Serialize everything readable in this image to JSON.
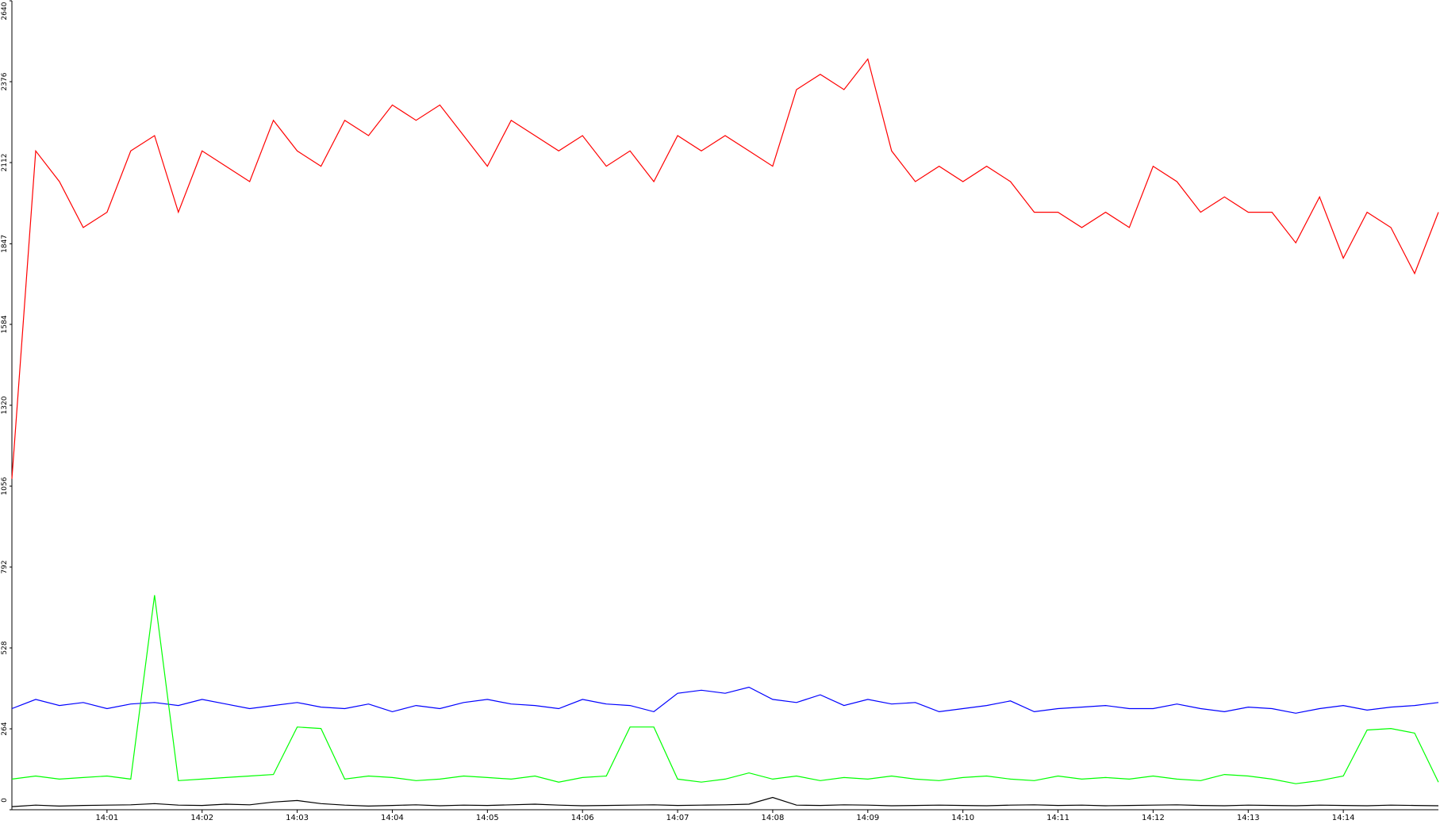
{
  "chart_data": {
    "type": "line",
    "categories": [
      null,
      null,
      null,
      null,
      "14:01",
      null,
      null,
      null,
      "14:02",
      null,
      null,
      null,
      "14:03",
      null,
      null,
      null,
      "14:04",
      null,
      null,
      null,
      "14:05",
      null,
      null,
      null,
      "14:06",
      null,
      null,
      null,
      "14:07",
      null,
      null,
      null,
      "14:08",
      null,
      null,
      null,
      "14:09",
      null,
      null,
      null,
      "14:10",
      null,
      null,
      null,
      "14:11",
      null,
      null,
      null,
      "14:12",
      null,
      null,
      null,
      "14:13",
      null,
      null,
      null,
      "14:14",
      null,
      null,
      null,
      null
    ],
    "series": [
      {
        "color": "#ff0000",
        "values": [
          1080,
          2150,
          2050,
          1900,
          1950,
          2150,
          2200,
          1950,
          2150,
          2100,
          2050,
          2250,
          2150,
          2100,
          2250,
          2200,
          2300,
          2250,
          2300,
          2200,
          2100,
          2250,
          2200,
          2150,
          2200,
          2100,
          2150,
          2050,
          2200,
          2150,
          2200,
          2150,
          2100,
          2350,
          2400,
          2350,
          2450,
          2150,
          2050,
          2100,
          2050,
          2100,
          2050,
          1950,
          1950,
          1900,
          1950,
          1900,
          2100,
          2050,
          1950,
          2000,
          1950,
          1950,
          1850,
          2000,
          1800,
          1950,
          1900,
          1750,
          1950
        ]
      },
      {
        "color": "#0000ff",
        "values": [
          330,
          360,
          340,
          350,
          330,
          345,
          350,
          340,
          360,
          345,
          330,
          340,
          350,
          335,
          330,
          345,
          320,
          340,
          330,
          350,
          360,
          345,
          340,
          330,
          360,
          345,
          340,
          320,
          380,
          390,
          380,
          400,
          360,
          350,
          375,
          340,
          360,
          345,
          350,
          320,
          330,
          340,
          355,
          320,
          330,
          335,
          340,
          330,
          330,
          345,
          330,
          320,
          335,
          330,
          315,
          330,
          340,
          325,
          335,
          340,
          350
        ]
      },
      {
        "color": "#00ff00",
        "values": [
          100,
          110,
          100,
          105,
          110,
          100,
          700,
          95,
          100,
          105,
          110,
          115,
          270,
          265,
          100,
          110,
          105,
          95,
          100,
          110,
          105,
          100,
          110,
          90,
          105,
          110,
          270,
          270,
          100,
          90,
          100,
          120,
          100,
          110,
          95,
          105,
          100,
          110,
          100,
          95,
          105,
          110,
          100,
          95,
          110,
          100,
          105,
          100,
          110,
          100,
          95,
          115,
          110,
          100,
          85,
          95,
          110,
          260,
          265,
          250,
          90
        ]
      },
      {
        "color": "#000000",
        "values": [
          10,
          15,
          12,
          14,
          15,
          16,
          20,
          15,
          14,
          18,
          16,
          25,
          30,
          20,
          15,
          12,
          14,
          16,
          13,
          15,
          14,
          16,
          18,
          15,
          13,
          14,
          15,
          16,
          14,
          15,
          16,
          18,
          40,
          15,
          14,
          16,
          15,
          13,
          14,
          15,
          14,
          13,
          15,
          16,
          14,
          15,
          13,
          14,
          15,
          16,
          14,
          13,
          15,
          14,
          13,
          15,
          14,
          13,
          15,
          14,
          13
        ]
      }
    ],
    "ylim": [
      0,
      2640
    ],
    "yticks": [
      0,
      264,
      528,
      792,
      1056,
      1320,
      1584,
      1847,
      2112,
      2376,
      2640
    ],
    "grid": false
  }
}
